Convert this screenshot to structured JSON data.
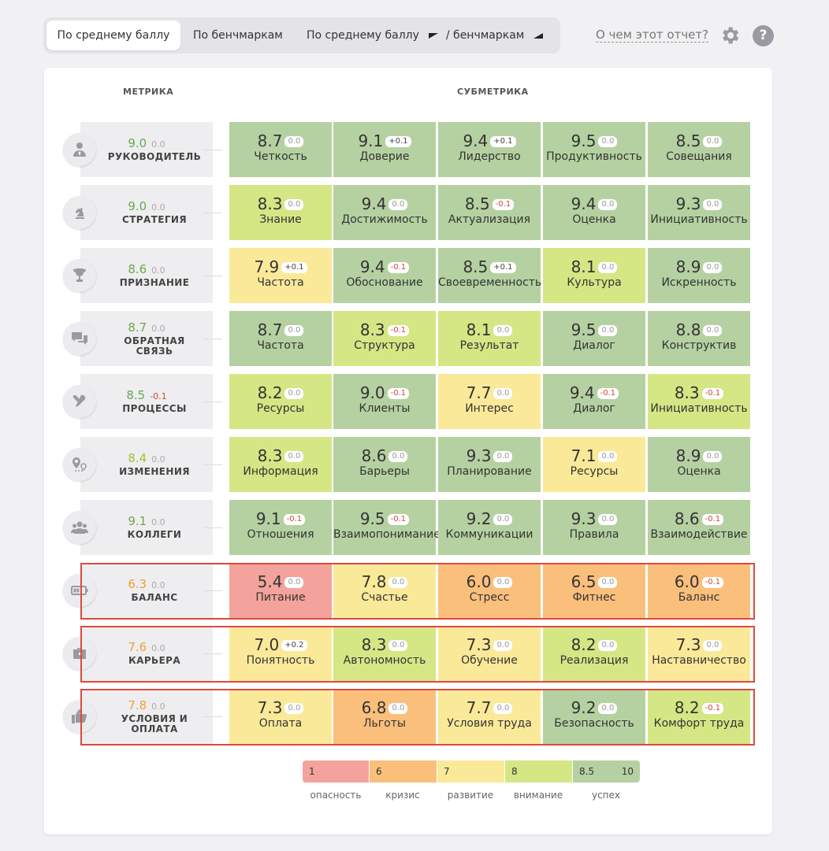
{
  "tabs": {
    "t1": "По среднему баллу",
    "t2": "По бенчмаркам",
    "t3a": "По среднему баллу",
    "t3b": "/ бенчмаркам"
  },
  "header_links": {
    "about": "О чем этот отчет?",
    "help": "?"
  },
  "columns": {
    "metric": "МЕТРИКА",
    "submetric": "СУБМЕТРИКА"
  },
  "colors": {
    "green": "#b5d1a1",
    "lime": "#d5e685",
    "yellow": "#fbe99a",
    "orange": "#fbbf7c",
    "red": "#f4a39c",
    "score_green": "#6aa84f",
    "score_lime": "#9fc13b",
    "score_orange": "#f0a030",
    "highlight": "#db4a3c"
  },
  "rows": [
    {
      "icon": "leader-icon",
      "name": "РУКОВОДИТЕЛЬ",
      "score": "9.0",
      "delta": "0.0",
      "scoreColor": "score_green",
      "cells": [
        {
          "v": "8.7",
          "d": "0.0",
          "n": "Четкость",
          "c": "green"
        },
        {
          "v": "9.1",
          "d": "+0.1",
          "n": "Доверие",
          "c": "green"
        },
        {
          "v": "9.4",
          "d": "+0.1",
          "n": "Лидерство",
          "c": "green"
        },
        {
          "v": "9.5",
          "d": "0.0",
          "n": "Продуктивность",
          "c": "green"
        },
        {
          "v": "8.5",
          "d": "0.0",
          "n": "Совещания",
          "c": "green"
        }
      ]
    },
    {
      "icon": "chess-knight-icon",
      "name": "СТРАТЕГИЯ",
      "score": "9.0",
      "delta": "0.0",
      "scoreColor": "score_green",
      "cells": [
        {
          "v": "8.3",
          "d": "0.0",
          "n": "Знание",
          "c": "lime"
        },
        {
          "v": "9.4",
          "d": "0.0",
          "n": "Достижимость",
          "c": "green"
        },
        {
          "v": "8.5",
          "d": "-0.1",
          "n": "Актуализация",
          "c": "green"
        },
        {
          "v": "9.4",
          "d": "0.0",
          "n": "Оценка",
          "c": "green"
        },
        {
          "v": "9.3",
          "d": "0.0",
          "n": "Инициативность",
          "c": "green"
        }
      ]
    },
    {
      "icon": "trophy-icon",
      "name": "ПРИЗНАНИЕ",
      "score": "8.6",
      "delta": "0.0",
      "scoreColor": "score_green",
      "cells": [
        {
          "v": "7.9",
          "d": "+0.1",
          "n": "Частота",
          "c": "yellow"
        },
        {
          "v": "9.4",
          "d": "-0.1",
          "n": "Обоснование",
          "c": "green"
        },
        {
          "v": "8.5",
          "d": "+0.1",
          "n": "Своевременность",
          "c": "green"
        },
        {
          "v": "8.1",
          "d": "0.0",
          "n": "Культура",
          "c": "lime"
        },
        {
          "v": "8.9",
          "d": "0.0",
          "n": "Искренность",
          "c": "green"
        }
      ]
    },
    {
      "icon": "chat-bubbles-icon",
      "name": "ОБРАТНАЯ СВЯЗЬ",
      "score": "8.7",
      "delta": "0.0",
      "scoreColor": "score_green",
      "cells": [
        {
          "v": "8.7",
          "d": "0.0",
          "n": "Частота",
          "c": "green"
        },
        {
          "v": "8.3",
          "d": "-0.1",
          "n": "Структура",
          "c": "lime"
        },
        {
          "v": "8.1",
          "d": "0.0",
          "n": "Результат",
          "c": "lime"
        },
        {
          "v": "9.5",
          "d": "0.0",
          "n": "Диалог",
          "c": "green"
        },
        {
          "v": "8.8",
          "d": "0.0",
          "n": "Конструктив",
          "c": "green"
        }
      ]
    },
    {
      "icon": "tools-icon",
      "name": "ПРОЦЕССЫ",
      "score": "8.5",
      "delta": "-0.1",
      "scoreColor": "score_green",
      "cells": [
        {
          "v": "8.2",
          "d": "0.0",
          "n": "Ресурсы",
          "c": "lime"
        },
        {
          "v": "9.0",
          "d": "-0.1",
          "n": "Клиенты",
          "c": "green"
        },
        {
          "v": "7.7",
          "d": "0.0",
          "n": "Интерес",
          "c": "yellow"
        },
        {
          "v": "9.4",
          "d": "-0.1",
          "n": "Диалог",
          "c": "green"
        },
        {
          "v": "8.3",
          "d": "-0.1",
          "n": "Инициативность",
          "c": "lime"
        }
      ]
    },
    {
      "icon": "route-pin-icon",
      "name": "ИЗМЕНЕНИЯ",
      "score": "8.4",
      "delta": "0.0",
      "scoreColor": "score_lime",
      "cells": [
        {
          "v": "8.3",
          "d": "0.0",
          "n": "Информация",
          "c": "lime"
        },
        {
          "v": "8.6",
          "d": "0.0",
          "n": "Барьеры",
          "c": "green"
        },
        {
          "v": "9.3",
          "d": "0.0",
          "n": "Планирование",
          "c": "green"
        },
        {
          "v": "7.1",
          "d": "0.0",
          "n": "Ресурсы",
          "c": "yellow"
        },
        {
          "v": "8.9",
          "d": "0.0",
          "n": "Оценка",
          "c": "green"
        }
      ]
    },
    {
      "icon": "team-icon",
      "name": "КОЛЛЕГИ",
      "score": "9.1",
      "delta": "0.0",
      "scoreColor": "score_green",
      "cells": [
        {
          "v": "9.1",
          "d": "-0.1",
          "n": "Отношения",
          "c": "green"
        },
        {
          "v": "9.5",
          "d": "-0.1",
          "n": "Взаимопонимание",
          "c": "green"
        },
        {
          "v": "9.2",
          "d": "0.0",
          "n": "Коммуникации",
          "c": "green"
        },
        {
          "v": "9.3",
          "d": "0.0",
          "n": "Правила",
          "c": "green"
        },
        {
          "v": "8.6",
          "d": "-0.1",
          "n": "Взаимодействие",
          "c": "green"
        }
      ]
    },
    {
      "icon": "battery-icon",
      "name": "БАЛАНС",
      "score": "6.3",
      "delta": "0.0",
      "scoreColor": "score_orange",
      "highlight": true,
      "cells": [
        {
          "v": "5.4",
          "d": "0.0",
          "n": "Питание",
          "c": "red"
        },
        {
          "v": "7.8",
          "d": "0.0",
          "n": "Счастье",
          "c": "yellow"
        },
        {
          "v": "6.0",
          "d": "0.0",
          "n": "Стресс",
          "c": "orange"
        },
        {
          "v": "6.5",
          "d": "0.0",
          "n": "Фитнес",
          "c": "orange"
        },
        {
          "v": "6.0",
          "d": "-0.1",
          "n": "Баланс",
          "c": "orange"
        }
      ]
    },
    {
      "icon": "briefcase-icon",
      "name": "КАРЬЕРА",
      "score": "7.6",
      "delta": "0.0",
      "scoreColor": "score_orange",
      "highlight": true,
      "cells": [
        {
          "v": "7.0",
          "d": "+0.2",
          "n": "Понятность",
          "c": "yellow"
        },
        {
          "v": "8.3",
          "d": "0.0",
          "n": "Автономность",
          "c": "lime"
        },
        {
          "v": "7.3",
          "d": "0.0",
          "n": "Обучение",
          "c": "yellow"
        },
        {
          "v": "8.2",
          "d": "0.0",
          "n": "Реализация",
          "c": "lime"
        },
        {
          "v": "7.3",
          "d": "0.0",
          "n": "Наставничество",
          "c": "yellow"
        }
      ]
    },
    {
      "icon": "thumbs-up-icon",
      "name": "УСЛОВИЯ И ОПЛАТА",
      "score": "7.8",
      "delta": "0.0",
      "scoreColor": "score_orange",
      "highlight": true,
      "cells": [
        {
          "v": "7.3",
          "d": "0.0",
          "n": "Оплата",
          "c": "yellow"
        },
        {
          "v": "6.8",
          "d": "0.0",
          "n": "Льготы",
          "c": "orange"
        },
        {
          "v": "7.7",
          "d": "0.0",
          "n": "Условия труда",
          "c": "yellow"
        },
        {
          "v": "9.2",
          "d": "0.0",
          "n": "Безопасность",
          "c": "green"
        },
        {
          "v": "8.2",
          "d": "-0.1",
          "n": "Комфорт труда",
          "c": "lime"
        }
      ]
    }
  ],
  "legend": [
    {
      "value": "1",
      "label": "опасность",
      "color": "#f4a39c"
    },
    {
      "value": "6",
      "label": "кризис",
      "color": "#fbbf7c"
    },
    {
      "value": "7",
      "label": "развитие",
      "color": "#fbe99a"
    },
    {
      "value": "8",
      "label": "внимание",
      "color": "#d5e685"
    },
    {
      "value": "8.5",
      "value2": "10",
      "label": "успех",
      "color": "#b5d1a1"
    }
  ]
}
